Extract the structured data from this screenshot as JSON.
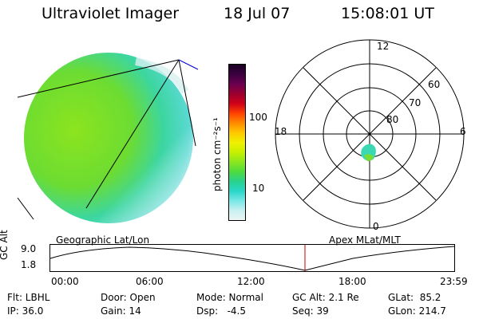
{
  "header": {
    "title": "Ultraviolet Imager",
    "date": "18 Jul 07",
    "time": "15:08:01 UT"
  },
  "colorbar": {
    "unit_label": "photon cm⁻²s⁻¹",
    "tick_labels": [
      "100",
      "10"
    ],
    "colors": [
      "#1a0022",
      "#3a0040",
      "#6a0050",
      "#9a0030",
      "#d0001a",
      "#ff4000",
      "#ff8a00",
      "#ffc800",
      "#f0f000",
      "#c8f000",
      "#8ce61e",
      "#50dc3c",
      "#28d28c",
      "#28d7c8",
      "#78e6e6",
      "#c8f0f0",
      "#ebf5f5"
    ]
  },
  "polar_grid": {
    "mlt_labels": {
      "top": "12",
      "left": "18",
      "right": "6",
      "bottom": "0"
    },
    "lat_labels": [
      "60",
      "70",
      "80"
    ]
  },
  "timeline": {
    "left_caption": "Geographic Lat/Lon",
    "right_caption": "Apex MLat/MLT",
    "axis_title": "GC Alt",
    "y_ticks": [
      "9.0",
      "1.8"
    ],
    "x_ticks": [
      "00:00",
      "06:00",
      "12:00",
      "18:00",
      "23:59"
    ],
    "current_time_hours": 15.13,
    "marker_color": "#cc0000"
  },
  "status": {
    "filter": "Flt: LBHL",
    "ip": "IP: 36.0",
    "door": "Door: Open",
    "gain": "Gain: 14",
    "mode": "Mode: Normal",
    "dsp": "Dsp:   -4.5",
    "gc_alt": "GC Alt: 2.1 Re",
    "seq": "Seq: 39",
    "glat": "GLat:  85.2",
    "glon": "GLon: 214.7"
  }
}
